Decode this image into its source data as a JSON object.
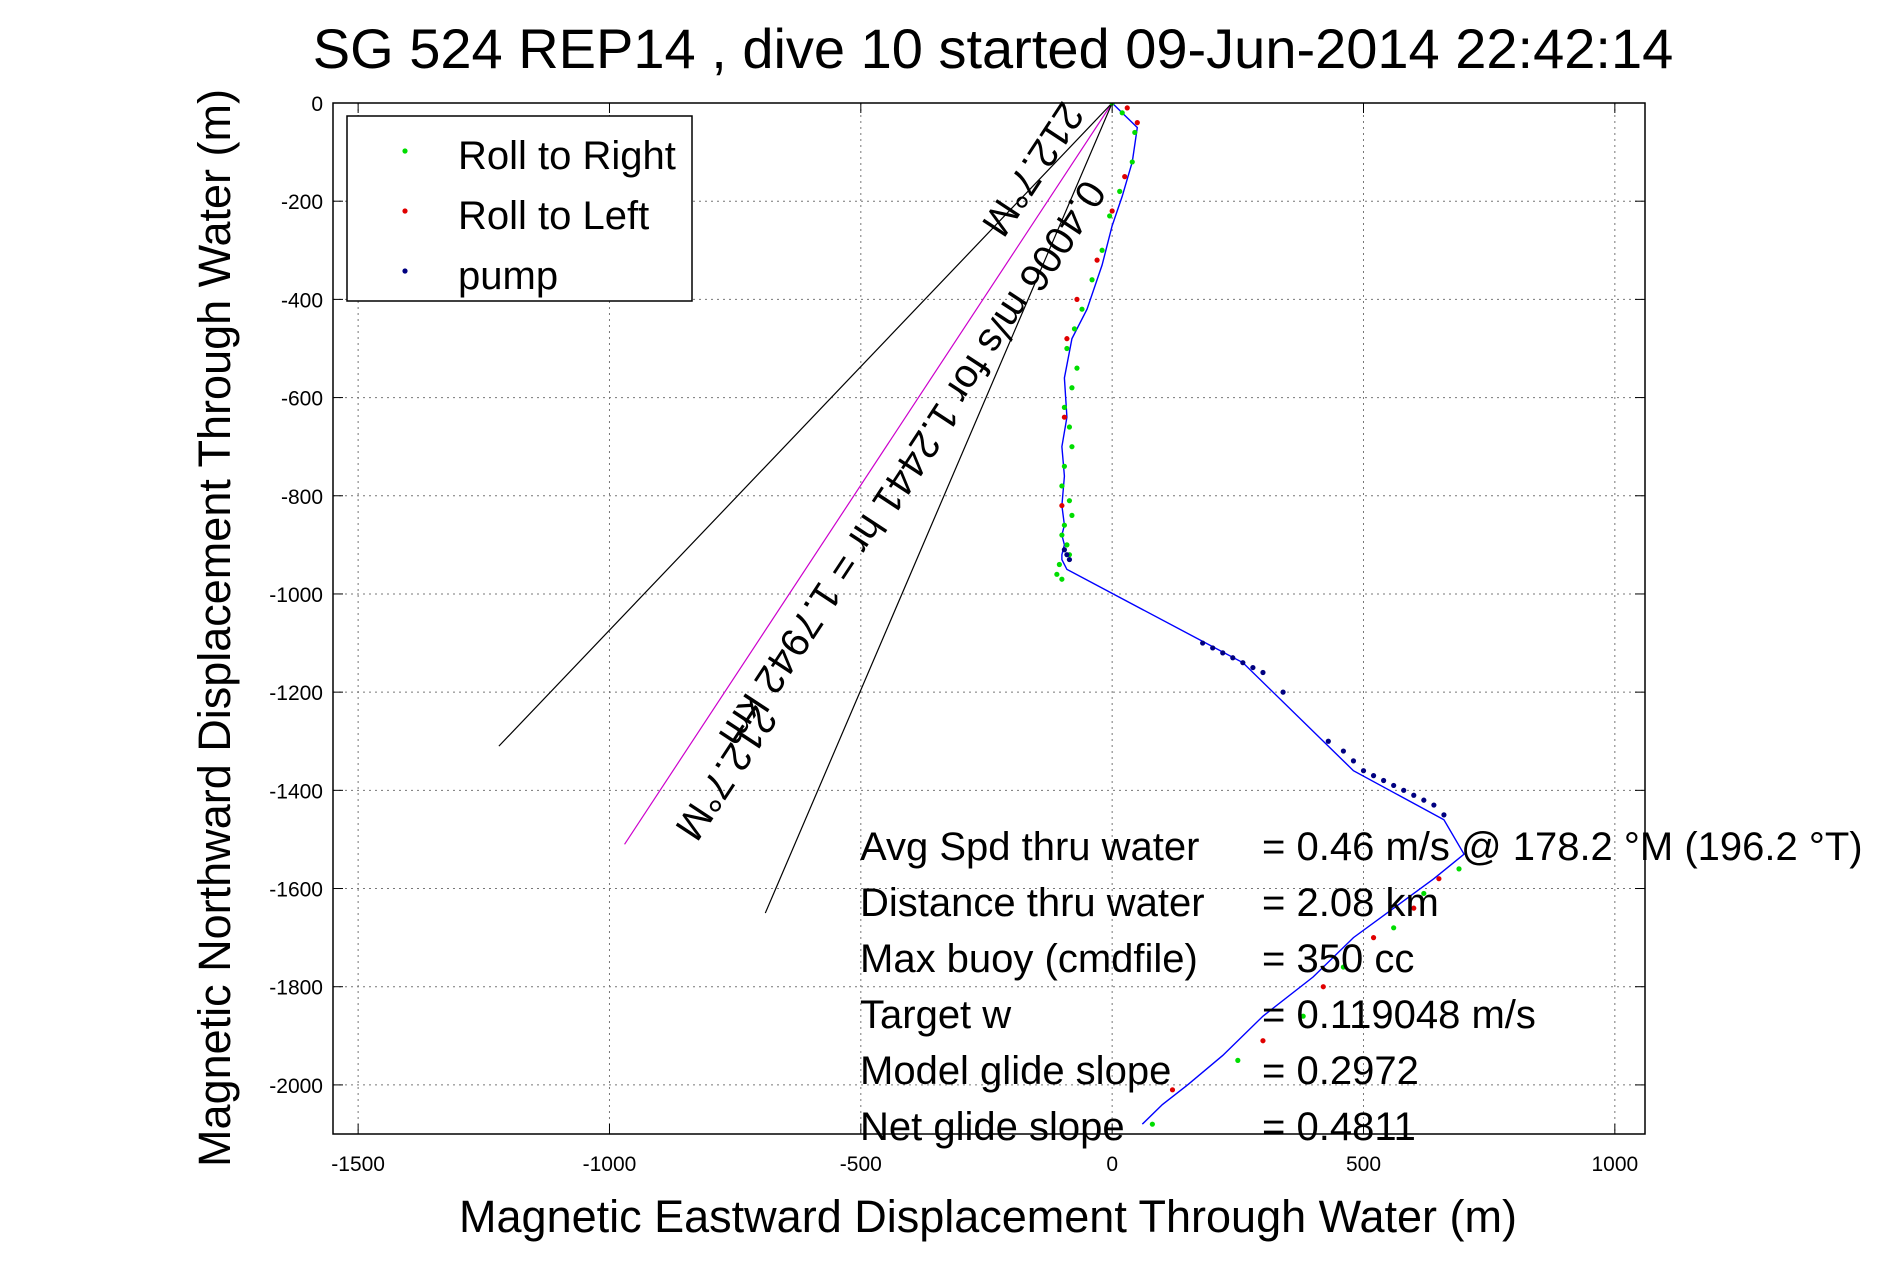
{
  "chart_data": {
    "type": "scatter",
    "title": "SG 524   REP14  , dive 10 started 09-Jun-2014 22:42:14",
    "xlabel": "Magnetic Eastward Displacement Through Water (m)",
    "ylabel": "Magnetic Northward Displacement Through Water (m)",
    "xlim": [
      -1550,
      1060
    ],
    "ylim": [
      -2100,
      0
    ],
    "xticks": [
      -1500,
      -1000,
      -500,
      0,
      500,
      1000
    ],
    "yticks": [
      0,
      -200,
      -400,
      -600,
      -800,
      -1000,
      -1200,
      -1400,
      -1600,
      -1800,
      -2000
    ],
    "grid": true,
    "legend": {
      "placement": "top-left",
      "entries": [
        {
          "label": "Roll to Right",
          "color": "#00dd00"
        },
        {
          "label": "Roll to Left",
          "color": "#e00000"
        },
        {
          "label": "pump",
          "color": "#000080"
        }
      ]
    },
    "series": [
      {
        "name": "Roll to Right",
        "color": "#00dd00",
        "x": [
          0,
          20,
          45,
          40,
          15,
          -5,
          -20,
          -40,
          -60,
          -75,
          -90,
          -70,
          -80,
          -95,
          -85,
          -80,
          -95,
          -100,
          -85,
          -80,
          -95,
          -100,
          -90,
          -85,
          -105,
          -110,
          -100,
          80,
          250,
          380,
          460,
          560,
          620,
          690
        ],
        "y": [
          0,
          -20,
          -60,
          -120,
          -180,
          -230,
          -300,
          -360,
          -420,
          -460,
          -500,
          -540,
          -580,
          -620,
          -660,
          -700,
          -740,
          -780,
          -810,
          -840,
          -860,
          -880,
          -900,
          -920,
          -940,
          -960,
          -970,
          -2080,
          -1950,
          -1860,
          -1760,
          -1680,
          -1610,
          -1560
        ]
      },
      {
        "name": "Roll to Left",
        "color": "#e00000",
        "x": [
          30,
          50,
          25,
          0,
          -30,
          -70,
          -90,
          -95,
          -100,
          120,
          300,
          420,
          520,
          600,
          650
        ],
        "y": [
          -10,
          -40,
          -150,
          -220,
          -320,
          -400,
          -480,
          -640,
          -820,
          -2010,
          -1910,
          -1800,
          -1700,
          -1640,
          -1580
        ]
      },
      {
        "name": "pump",
        "color": "#000080",
        "x": [
          -95,
          -90,
          -85,
          180,
          200,
          220,
          240,
          260,
          280,
          300,
          340,
          430,
          460,
          480,
          500,
          520,
          540,
          560,
          580,
          600,
          620,
          640,
          660
        ],
        "y": [
          -910,
          -920,
          -930,
          -1100,
          -1110,
          -1120,
          -1130,
          -1140,
          -1150,
          -1160,
          -1200,
          -1300,
          -1320,
          -1340,
          -1360,
          -1370,
          -1380,
          -1390,
          -1400,
          -1410,
          -1420,
          -1430,
          -1450
        ]
      },
      {
        "name": "track",
        "color": "#0000ff",
        "x": [
          0,
          20,
          50,
          40,
          20,
          0,
          -20,
          -50,
          -80,
          -95,
          -90,
          -100,
          -95,
          -100,
          -95,
          -100,
          -95,
          -100,
          -100,
          -90,
          260,
          480,
          660,
          700,
          640,
          560,
          480,
          400,
          300,
          220,
          150,
          100,
          60
        ],
        "y": [
          0,
          -20,
          -50,
          -120,
          -190,
          -250,
          -330,
          -420,
          -480,
          -560,
          -640,
          -700,
          -760,
          -820,
          -860,
          -880,
          -900,
          -920,
          -930,
          -950,
          -1140,
          -1360,
          -1460,
          -1530,
          -1580,
          -1640,
          -1700,
          -1780,
          -1860,
          -1940,
          -2000,
          -2040,
          -2080
        ]
      }
    ],
    "lines": [
      {
        "name": "heading",
        "color": "#cc00cc",
        "x": [
          0,
          -970
        ],
        "y": [
          0,
          -1510
        ]
      },
      {
        "name": "cone-left",
        "color": "#000000",
        "x": [
          0,
          -1220
        ],
        "y": [
          0,
          -1310
        ]
      },
      {
        "name": "cone-right",
        "color": "#000000",
        "x": [
          0,
          -690
        ],
        "y": [
          0,
          -1650
        ]
      }
    ],
    "rotated_labels": [
      {
        "text": "212.7°M",
        "x": -180,
        "y": -120
      },
      {
        "text": "0.4006 m/s for 1.2441 hr = 1.7942 km",
        "x": -420,
        "y": -720
      },
      {
        "text": "212.7°M",
        "x": -790,
        "y": -1350
      }
    ],
    "annotations": [
      {
        "label": "Avg Spd thru water",
        "value": "=  0.46 m/s @ 178.2 °M (196.2 °T)"
      },
      {
        "label": "Distance thru water",
        "value": "=  2.08 km"
      },
      {
        "label": "Max buoy (cmdfile)",
        "value": "= 350 cc"
      },
      {
        "label": "Target w",
        "value": "= 0.119048 m/s"
      },
      {
        "label": "Model glide slope",
        "value": "= 0.2972"
      },
      {
        "label": "Net glide slope",
        "value": "= 0.4811"
      }
    ]
  }
}
